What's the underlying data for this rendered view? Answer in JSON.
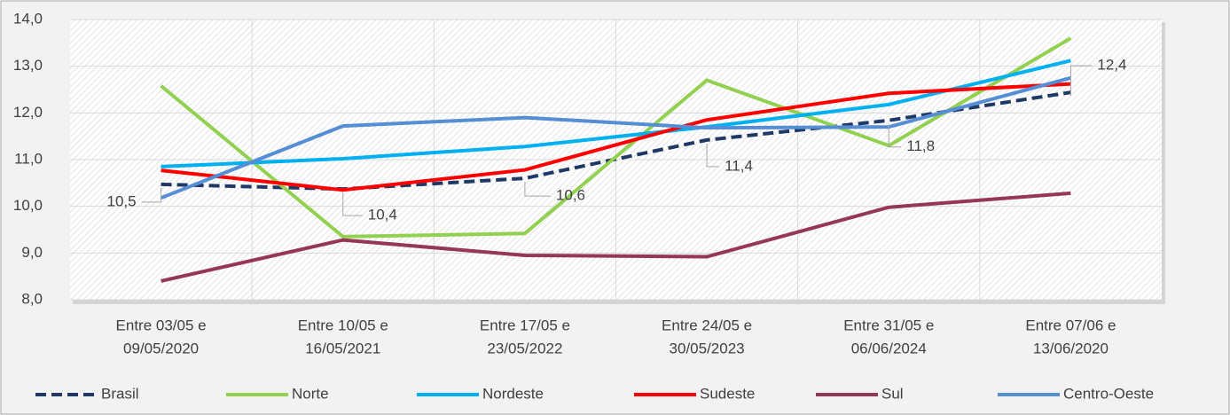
{
  "chart_data": {
    "type": "line",
    "categories": [
      [
        "Entre 03/05 e",
        "09/05/2020"
      ],
      [
        "Entre 10/05 e",
        "16/05/2021"
      ],
      [
        "Entre 17/05 e",
        "23/05/2022"
      ],
      [
        "Entre 24/05 e",
        "30/05/2023"
      ],
      [
        "Entre 31/05 e",
        "06/06/2024"
      ],
      [
        "Entre 07/06 e",
        "13/06/2020"
      ]
    ],
    "series": [
      {
        "name": "Brasil",
        "color": "#1f3864",
        "dashed": true,
        "values": [
          10.47,
          10.37,
          10.6,
          11.42,
          11.84,
          12.44
        ],
        "value_labels": [
          "10,5",
          "10,4",
          "10,6",
          "11,4",
          "11,8",
          "12,4"
        ]
      },
      {
        "name": "Norte",
        "color": "#92d050",
        "values": [
          12.58,
          9.35,
          9.42,
          12.7,
          11.3,
          13.6
        ]
      },
      {
        "name": "Nordeste",
        "color": "#00b0f0",
        "values": [
          10.85,
          11.02,
          11.28,
          11.7,
          12.18,
          13.12
        ]
      },
      {
        "name": "Sudeste",
        "color": "#ff0000",
        "values": [
          10.77,
          10.35,
          10.78,
          11.85,
          12.42,
          12.62
        ]
      },
      {
        "name": "Sul",
        "color": "#953755",
        "values": [
          8.4,
          9.28,
          8.95,
          8.92,
          9.98,
          10.28
        ]
      },
      {
        "name": "Centro-Oeste",
        "color": "#558ed5",
        "values": [
          10.18,
          11.72,
          11.9,
          11.68,
          11.7,
          12.75
        ]
      }
    ],
    "ylim": [
      8,
      14
    ],
    "yticks": [
      {
        "value": 8,
        "label": "8,0"
      },
      {
        "value": 9,
        "label": "9,0"
      },
      {
        "value": 10,
        "label": "10,0"
      },
      {
        "value": 11,
        "label": "11,0"
      },
      {
        "value": 12,
        "label": "12,0"
      },
      {
        "value": 13,
        "label": "13,0"
      },
      {
        "value": 14,
        "label": "14,0"
      }
    ],
    "grid": true,
    "legend": "bottom"
  }
}
